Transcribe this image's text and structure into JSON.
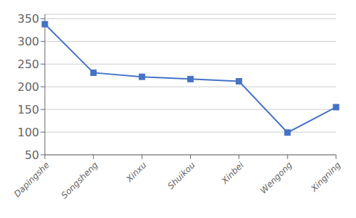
{
  "chart_data": {
    "type": "line",
    "categories": [
      "Dapingshe",
      "Songsheng",
      "Xinxu",
      "Shuikou",
      "Xinbei",
      "Wengong",
      "Xingning"
    ],
    "values": [
      338,
      231,
      222,
      217,
      212,
      99,
      155
    ],
    "color": "#4472C4",
    "marker": "square",
    "ylim": [
      50,
      360
    ],
    "yticks": [
      50,
      100,
      150,
      200,
      250,
      300,
      350
    ],
    "grid": true
  }
}
